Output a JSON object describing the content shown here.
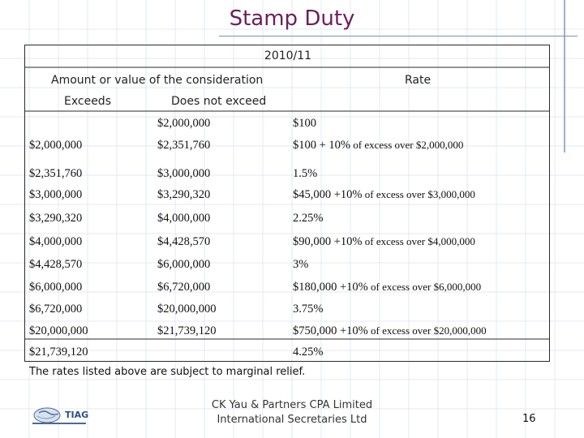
{
  "slide": {
    "title": "Stamp Duty",
    "period": "2010/11",
    "col_amount": "Amount or value of the consideration",
    "col_rate": "Rate",
    "col_exceeds": "Exceeds",
    "col_not_exceed": "Does not exceed",
    "rows": [
      {
        "exceeds": "",
        "not_exceed": "$2,000,000",
        "rate": "$100",
        "rate_note": ""
      },
      {
        "exceeds": "$2,000,000",
        "not_exceed": "$2,351,760",
        "rate": "$100 + 10%",
        "rate_note": " of excess over $2,000,000"
      },
      {
        "exceeds": "$2,351,760",
        "not_exceed": "$3,000,000",
        "rate": "1.5%",
        "rate_note": ""
      },
      {
        "exceeds": "$3,000,000",
        "not_exceed": "$3,290,320",
        "rate": "$45,000 +10%",
        "rate_note": " of excess over $3,000,000"
      },
      {
        "exceeds": "$3,290,320",
        "not_exceed": "$4,000,000",
        "rate": "2.25%",
        "rate_note": ""
      },
      {
        "exceeds": "$4,000,000",
        "not_exceed": "$4,428,570",
        "rate": "$90,000 +10%",
        "rate_note": " of excess over $4,000,000"
      },
      {
        "exceeds": "$4,428,570",
        "not_exceed": "$6,000,000",
        "rate": "3%",
        "rate_note": ""
      },
      {
        "exceeds": "$6,000,000",
        "not_exceed": "$6,720,000",
        "rate": "$180,000 +10%",
        "rate_note": " of excess over $6,000,000"
      },
      {
        "exceeds": "$6,720,000",
        "not_exceed": "$20,000,000",
        "rate": "3.75%",
        "rate_note": ""
      },
      {
        "exceeds": "$20,000,000",
        "not_exceed": "$21,739,120",
        "rate": "$750,000 +10%",
        "rate_note": " of excess over $20,000,000"
      },
      {
        "exceeds": "$21,739,120",
        "not_exceed": "",
        "rate": "4.25%",
        "rate_note": ""
      }
    ],
    "note": "The rates listed above are subject to marginal relief.",
    "footer_line1": "CK Yau & Partners CPA Limited",
    "footer_line2": "International Secretaries Ltd",
    "page_number": "16",
    "logo_text": "TIAG"
  }
}
